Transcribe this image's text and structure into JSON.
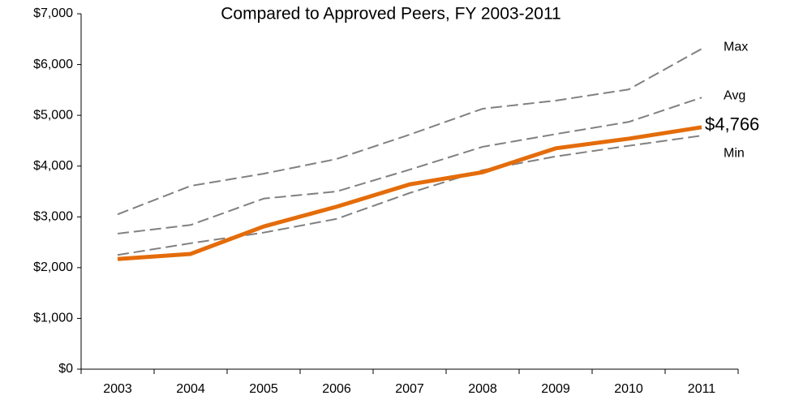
{
  "chart_data": {
    "type": "line",
    "title": "Compared to Approved Peers, FY 2003-2011",
    "categories": [
      "2003",
      "2004",
      "2005",
      "2006",
      "2007",
      "2008",
      "2009",
      "2010",
      "2011"
    ],
    "series": [
      {
        "name": "Max",
        "color": "#808080",
        "style": "dashed",
        "values": [
          3050,
          3610,
          3850,
          4140,
          4620,
          5130,
          5290,
          5510,
          6310
        ]
      },
      {
        "name": "Avg",
        "color": "#808080",
        "style": "dashed",
        "values": [
          2670,
          2840,
          3360,
          3500,
          3930,
          4380,
          4630,
          4870,
          5350
        ]
      },
      {
        "name": "Min",
        "color": "#808080",
        "style": "dashed",
        "values": [
          2250,
          2480,
          2690,
          2960,
          3470,
          3920,
          4190,
          4400,
          4600
        ]
      },
      {
        "color": "#e46c0a",
        "style": "solid",
        "values": [
          2170,
          2270,
          2810,
          3200,
          3640,
          3880,
          4350,
          4540,
          4766
        ],
        "value_labels": [
          null,
          null,
          null,
          null,
          null,
          null,
          null,
          null,
          "$4,766"
        ]
      }
    ],
    "ylim": [
      0,
      7000
    ],
    "yticks": [
      {
        "value": 0,
        "label": "$0"
      },
      {
        "value": 1000,
        "label": "$1,000"
      },
      {
        "value": 2000,
        "label": "$2,000"
      },
      {
        "value": 3000,
        "label": "$3,000"
      },
      {
        "value": 4000,
        "label": "$4,000"
      },
      {
        "value": 5000,
        "label": "$5,000"
      },
      {
        "value": 6000,
        "label": "$6,000"
      },
      {
        "value": 7000,
        "label": "$7,000"
      }
    ],
    "grid": false
  }
}
